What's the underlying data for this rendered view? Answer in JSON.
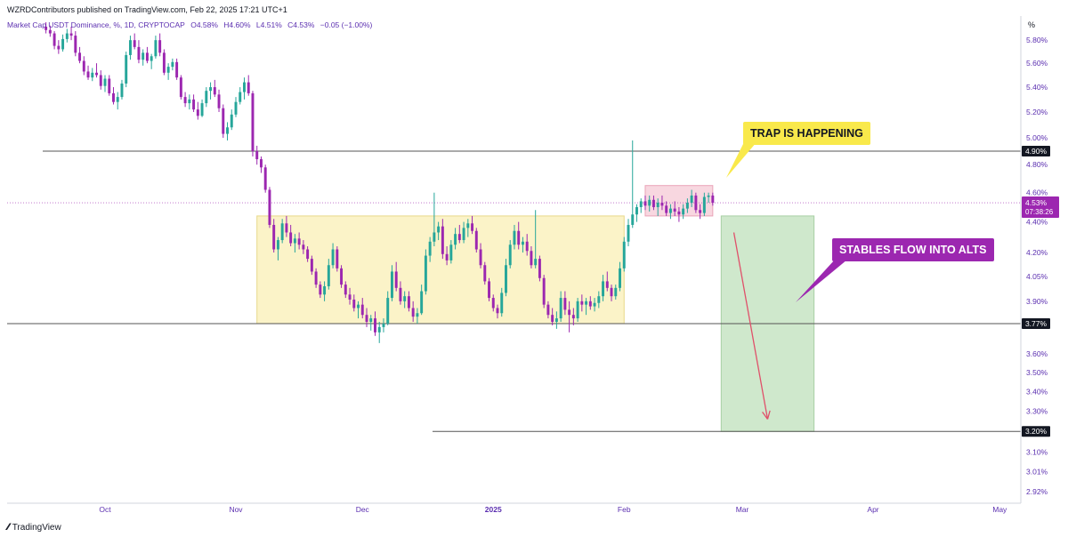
{
  "header": {
    "published": "WZRDContributors published on TradingView.com, Feb 22, 2025 17:21 UTC+1",
    "symbol": "Market Cap USDT Dominance, %, 1D, CRYPTOCAP",
    "open": "O4.58%",
    "high": "H4.60%",
    "low": "L4.51%",
    "close": "C4.53%",
    "change": "−0.05 (−1.00%)"
  },
  "branding": {
    "name": "TradingView",
    "icon": "tradingview-logo-icon"
  },
  "colors": {
    "up": "#26a69a",
    "down": "#9c27b0",
    "support_zone": "#fbf3c8",
    "trap_zone": "#f8d7e0",
    "target_zone": "#cfe8cc",
    "arrow": "#e0506a",
    "callout_yellow": "#f9e94b",
    "callout_purple": "#9c27b0"
  },
  "annotations": {
    "trap_label": "TRAP IS HAPPENING",
    "stables_label": "STABLES FLOW INTO ALTS"
  },
  "chart_data": {
    "type": "candlestick",
    "title": "Market Cap USDT Dominance, %, 1D, CRYPTOCAP",
    "y_unit": "%",
    "y_scale": "log",
    "ylim": [
      2.88,
      6.05
    ],
    "x_ticks": [
      "Oct",
      "Nov",
      "Dec",
      "2025",
      "Feb",
      "Mar",
      "Apr",
      "May"
    ],
    "y_ticks": [
      "5.80%",
      "5.60%",
      "5.40%",
      "5.20%",
      "5.00%",
      "4.80%",
      "4.60%",
      "4.40%",
      "4.20%",
      "4.05%",
      "3.90%",
      "3.60%",
      "3.50%",
      "3.40%",
      "3.30%",
      "3.10%",
      "3.01%",
      "2.92%"
    ],
    "price_labels": [
      {
        "value": 4.9,
        "label": "4.90%"
      },
      {
        "value": 3.77,
        "label": "3.77%"
      },
      {
        "value": 3.2,
        "label": "3.20%"
      }
    ],
    "current": {
      "value": 4.53,
      "label": "4.53%",
      "countdown": "07:38:26"
    },
    "horizontal_lines": [
      4.9,
      3.77,
      3.2
    ],
    "zones": [
      {
        "name": "range-zone",
        "start": "2024-11-06",
        "end": "2025-02-01",
        "low": 3.77,
        "high": 4.44
      },
      {
        "name": "trap-zone",
        "start": "2025-02-06",
        "end": "2025-02-22",
        "low": 4.44,
        "high": 4.65
      },
      {
        "name": "target-zone",
        "start": "2025-02-24",
        "end": "2025-03-18",
        "low": 3.2,
        "high": 4.44
      }
    ],
    "projection": {
      "from": {
        "date": "2025-02-27",
        "value": 4.33
      },
      "to": {
        "date": "2025-03-07",
        "value": 3.26
      }
    },
    "candles": [
      [
        "2024-09-17",
        5.92,
        5.96,
        5.86,
        5.89
      ],
      [
        "2024-09-18",
        5.89,
        5.93,
        5.83,
        5.86
      ],
      [
        "2024-09-19",
        5.86,
        5.88,
        5.72,
        5.75
      ],
      [
        "2024-09-20",
        5.75,
        5.8,
        5.68,
        5.72
      ],
      [
        "2024-09-21",
        5.72,
        5.85,
        5.7,
        5.81
      ],
      [
        "2024-09-22",
        5.81,
        5.9,
        5.78,
        5.86
      ],
      [
        "2024-09-23",
        5.86,
        5.92,
        5.8,
        5.84
      ],
      [
        "2024-09-24",
        5.84,
        5.88,
        5.66,
        5.69
      ],
      [
        "2024-09-25",
        5.69,
        5.74,
        5.6,
        5.62
      ],
      [
        "2024-09-26",
        5.62,
        5.66,
        5.5,
        5.53
      ],
      [
        "2024-09-27",
        5.53,
        5.58,
        5.46,
        5.48
      ],
      [
        "2024-09-28",
        5.48,
        5.56,
        5.45,
        5.52
      ],
      [
        "2024-09-29",
        5.52,
        5.6,
        5.48,
        5.5
      ],
      [
        "2024-09-30",
        5.5,
        5.54,
        5.38,
        5.41
      ],
      [
        "2024-10-01",
        5.41,
        5.5,
        5.36,
        5.47
      ],
      [
        "2024-10-02",
        5.47,
        5.5,
        5.33,
        5.35
      ],
      [
        "2024-10-03",
        5.35,
        5.4,
        5.26,
        5.28
      ],
      [
        "2024-10-04",
        5.28,
        5.36,
        5.22,
        5.32
      ],
      [
        "2024-10-05",
        5.32,
        5.46,
        5.3,
        5.43
      ],
      [
        "2024-10-06",
        5.43,
        5.7,
        5.4,
        5.67
      ],
      [
        "2024-10-07",
        5.67,
        5.84,
        5.63,
        5.8
      ],
      [
        "2024-10-08",
        5.8,
        5.86,
        5.72,
        5.74
      ],
      [
        "2024-10-09",
        5.74,
        5.8,
        5.6,
        5.63
      ],
      [
        "2024-10-10",
        5.63,
        5.72,
        5.58,
        5.69
      ],
      [
        "2024-10-11",
        5.69,
        5.74,
        5.6,
        5.62
      ],
      [
        "2024-10-12",
        5.62,
        5.68,
        5.55,
        5.66
      ],
      [
        "2024-10-13",
        5.66,
        5.84,
        5.64,
        5.8
      ],
      [
        "2024-10-14",
        5.8,
        5.86,
        5.66,
        5.69
      ],
      [
        "2024-10-15",
        5.69,
        5.72,
        5.5,
        5.52
      ],
      [
        "2024-10-16",
        5.52,
        5.6,
        5.46,
        5.57
      ],
      [
        "2024-10-17",
        5.57,
        5.64,
        5.54,
        5.61
      ],
      [
        "2024-10-18",
        5.61,
        5.64,
        5.46,
        5.48
      ],
      [
        "2024-10-19",
        5.48,
        5.5,
        5.3,
        5.32
      ],
      [
        "2024-10-20",
        5.32,
        5.36,
        5.24,
        5.27
      ],
      [
        "2024-10-21",
        5.27,
        5.34,
        5.22,
        5.3
      ],
      [
        "2024-10-22",
        5.3,
        5.34,
        5.2,
        5.22
      ],
      [
        "2024-10-23",
        5.22,
        5.28,
        5.14,
        5.17
      ],
      [
        "2024-10-24",
        5.17,
        5.3,
        5.16,
        5.27
      ],
      [
        "2024-10-25",
        5.27,
        5.4,
        5.24,
        5.37
      ],
      [
        "2024-10-26",
        5.37,
        5.44,
        5.3,
        5.4
      ],
      [
        "2024-10-27",
        5.4,
        5.46,
        5.32,
        5.34
      ],
      [
        "2024-10-28",
        5.34,
        5.38,
        5.2,
        5.23
      ],
      [
        "2024-10-29",
        5.23,
        5.26,
        5.0,
        5.03
      ],
      [
        "2024-10-30",
        5.03,
        5.12,
        4.98,
        5.08
      ],
      [
        "2024-10-31",
        5.08,
        5.22,
        5.06,
        5.18
      ],
      [
        "2024-11-01",
        5.18,
        5.32,
        5.16,
        5.28
      ],
      [
        "2024-11-02",
        5.28,
        5.4,
        5.26,
        5.36
      ],
      [
        "2024-11-03",
        5.36,
        5.48,
        5.3,
        5.44
      ],
      [
        "2024-11-04",
        5.44,
        5.5,
        5.33,
        5.35
      ],
      [
        "2024-11-05",
        5.35,
        5.37,
        4.86,
        4.9
      ],
      [
        "2024-11-06",
        4.9,
        4.94,
        4.8,
        4.84
      ],
      [
        "2024-11-07",
        4.84,
        4.86,
        4.74,
        4.78
      ],
      [
        "2024-11-08",
        4.78,
        4.8,
        4.6,
        4.62
      ],
      [
        "2024-11-09",
        4.62,
        4.64,
        4.36,
        4.38
      ],
      [
        "2024-11-10",
        4.38,
        4.42,
        4.2,
        4.22
      ],
      [
        "2024-11-11",
        4.22,
        4.3,
        4.15,
        4.28
      ],
      [
        "2024-11-12",
        4.28,
        4.42,
        4.26,
        4.39
      ],
      [
        "2024-11-13",
        4.39,
        4.44,
        4.3,
        4.33
      ],
      [
        "2024-11-14",
        4.33,
        4.38,
        4.24,
        4.26
      ],
      [
        "2024-11-15",
        4.26,
        4.32,
        4.2,
        4.29
      ],
      [
        "2024-11-16",
        4.29,
        4.33,
        4.22,
        4.25
      ],
      [
        "2024-11-17",
        4.25,
        4.28,
        4.19,
        4.22
      ],
      [
        "2024-11-18",
        4.22,
        4.24,
        4.14,
        4.16
      ],
      [
        "2024-11-19",
        4.16,
        4.18,
        4.06,
        4.08
      ],
      [
        "2024-11-20",
        4.08,
        4.1,
        3.98,
        4.0
      ],
      [
        "2024-11-21",
        4.0,
        4.02,
        3.92,
        3.94
      ],
      [
        "2024-11-22",
        3.94,
        4.02,
        3.9,
        3.99
      ],
      [
        "2024-11-23",
        3.99,
        4.16,
        3.97,
        4.12
      ],
      [
        "2024-11-24",
        4.12,
        4.26,
        4.1,
        4.22
      ],
      [
        "2024-11-25",
        4.22,
        4.24,
        4.08,
        4.1
      ],
      [
        "2024-11-26",
        4.1,
        4.12,
        3.98,
        4.0
      ],
      [
        "2024-11-27",
        4.0,
        4.02,
        3.92,
        3.94
      ],
      [
        "2024-11-28",
        3.94,
        3.98,
        3.88,
        3.91
      ],
      [
        "2024-11-29",
        3.91,
        3.94,
        3.84,
        3.86
      ],
      [
        "2024-11-30",
        3.86,
        3.9,
        3.8,
        3.88
      ],
      [
        "2024-12-01",
        3.88,
        3.92,
        3.8,
        3.82
      ],
      [
        "2024-12-02",
        3.82,
        3.86,
        3.75,
        3.78
      ],
      [
        "2024-12-03",
        3.78,
        3.82,
        3.73,
        3.8
      ],
      [
        "2024-12-04",
        3.8,
        3.84,
        3.7,
        3.72
      ],
      [
        "2024-12-05",
        3.72,
        3.78,
        3.66,
        3.75
      ],
      [
        "2024-12-06",
        3.75,
        3.8,
        3.72,
        3.77
      ],
      [
        "2024-12-07",
        3.77,
        3.96,
        3.76,
        3.92
      ],
      [
        "2024-12-08",
        3.92,
        4.12,
        3.9,
        4.08
      ],
      [
        "2024-12-09",
        4.08,
        4.14,
        3.96,
        3.98
      ],
      [
        "2024-12-10",
        3.98,
        4.02,
        3.88,
        3.9
      ],
      [
        "2024-12-11",
        3.9,
        3.96,
        3.86,
        3.93
      ],
      [
        "2024-12-12",
        3.93,
        3.96,
        3.84,
        3.86
      ],
      [
        "2024-12-13",
        3.86,
        3.9,
        3.78,
        3.81
      ],
      [
        "2024-12-14",
        3.81,
        3.86,
        3.77,
        3.83
      ],
      [
        "2024-12-15",
        3.83,
        4.0,
        3.82,
        3.96
      ],
      [
        "2024-12-16",
        3.96,
        4.22,
        3.94,
        4.18
      ],
      [
        "2024-12-17",
        4.18,
        4.3,
        4.14,
        4.27
      ],
      [
        "2024-12-18",
        4.27,
        4.6,
        4.24,
        4.33
      ],
      [
        "2024-12-19",
        4.33,
        4.4,
        4.28,
        4.37
      ],
      [
        "2024-12-20",
        4.37,
        4.42,
        4.16,
        4.19
      ],
      [
        "2024-12-21",
        4.19,
        4.24,
        4.12,
        4.15
      ],
      [
        "2024-12-22",
        4.15,
        4.28,
        4.13,
        4.25
      ],
      [
        "2024-12-23",
        4.25,
        4.36,
        4.22,
        4.32
      ],
      [
        "2024-12-24",
        4.32,
        4.38,
        4.26,
        4.28
      ],
      [
        "2024-12-25",
        4.28,
        4.4,
        4.26,
        4.36
      ],
      [
        "2024-12-26",
        4.36,
        4.42,
        4.3,
        4.39
      ],
      [
        "2024-12-27",
        4.39,
        4.44,
        4.32,
        4.34
      ],
      [
        "2024-12-28",
        4.34,
        4.36,
        4.2,
        4.22
      ],
      [
        "2024-12-29",
        4.22,
        4.26,
        4.1,
        4.12
      ],
      [
        "2024-12-30",
        4.12,
        4.14,
        4.0,
        4.02
      ],
      [
        "2024-12-31",
        4.02,
        4.04,
        3.9,
        3.92
      ],
      [
        "2025-01-01",
        3.92,
        3.94,
        3.84,
        3.86
      ],
      [
        "2025-01-02",
        3.86,
        3.88,
        3.8,
        3.83
      ],
      [
        "2025-01-03",
        3.83,
        3.98,
        3.81,
        3.95
      ],
      [
        "2025-01-04",
        3.95,
        4.16,
        3.93,
        4.12
      ],
      [
        "2025-01-05",
        4.12,
        4.28,
        4.1,
        4.25
      ],
      [
        "2025-01-06",
        4.25,
        4.38,
        4.22,
        4.34
      ],
      [
        "2025-01-07",
        4.34,
        4.4,
        4.22,
        4.25
      ],
      [
        "2025-01-08",
        4.25,
        4.3,
        4.2,
        4.27
      ],
      [
        "2025-01-09",
        4.27,
        4.32,
        4.18,
        4.21
      ],
      [
        "2025-01-10",
        4.21,
        4.24,
        4.1,
        4.12
      ],
      [
        "2025-01-11",
        4.12,
        4.48,
        4.1,
        4.16
      ],
      [
        "2025-01-12",
        4.16,
        4.18,
        4.02,
        4.04
      ],
      [
        "2025-01-13",
        4.04,
        4.06,
        3.86,
        3.88
      ],
      [
        "2025-01-14",
        3.88,
        3.9,
        3.8,
        3.82
      ],
      [
        "2025-01-15",
        3.82,
        3.86,
        3.76,
        3.78
      ],
      [
        "2025-01-16",
        3.78,
        3.84,
        3.74,
        3.8
      ],
      [
        "2025-01-17",
        3.8,
        3.96,
        3.78,
        3.92
      ],
      [
        "2025-01-18",
        3.92,
        3.96,
        3.82,
        3.85
      ],
      [
        "2025-01-19",
        3.85,
        3.9,
        3.72,
        3.82
      ],
      [
        "2025-01-20",
        3.82,
        3.86,
        3.76,
        3.8
      ],
      [
        "2025-01-21",
        3.8,
        3.92,
        3.78,
        3.9
      ],
      [
        "2025-01-22",
        3.9,
        3.94,
        3.84,
        3.88
      ],
      [
        "2025-01-23",
        3.88,
        3.92,
        3.82,
        3.9
      ],
      [
        "2025-01-24",
        3.9,
        3.93,
        3.85,
        3.87
      ],
      [
        "2025-01-25",
        3.87,
        3.92,
        3.84,
        3.89
      ],
      [
        "2025-01-26",
        3.89,
        3.96,
        3.86,
        3.93
      ],
      [
        "2025-01-27",
        3.93,
        4.06,
        3.9,
        4.02
      ],
      [
        "2025-01-28",
        4.02,
        4.08,
        3.96,
        3.98
      ],
      [
        "2025-01-29",
        3.98,
        4.0,
        3.9,
        3.93
      ],
      [
        "2025-01-30",
        3.93,
        4.0,
        3.91,
        3.98
      ],
      [
        "2025-01-31",
        3.98,
        4.14,
        3.96,
        4.1
      ],
      [
        "2025-02-01",
        4.1,
        4.3,
        4.08,
        4.27
      ],
      [
        "2025-02-02",
        4.27,
        4.42,
        4.24,
        4.38
      ],
      [
        "2025-02-03",
        4.38,
        4.98,
        4.36,
        4.45
      ],
      [
        "2025-02-04",
        4.45,
        4.52,
        4.4,
        4.5
      ],
      [
        "2025-02-05",
        4.5,
        4.56,
        4.46,
        4.54
      ],
      [
        "2025-02-06",
        4.54,
        4.58,
        4.48,
        4.51
      ],
      [
        "2025-02-07",
        4.51,
        4.58,
        4.47,
        4.55
      ],
      [
        "2025-02-08",
        4.55,
        4.58,
        4.48,
        4.5
      ],
      [
        "2025-02-09",
        4.5,
        4.56,
        4.44,
        4.53
      ],
      [
        "2025-02-10",
        4.53,
        4.58,
        4.48,
        4.51
      ],
      [
        "2025-02-11",
        4.51,
        4.54,
        4.44,
        4.46
      ],
      [
        "2025-02-12",
        4.46,
        4.52,
        4.42,
        4.49
      ],
      [
        "2025-02-13",
        4.49,
        4.54,
        4.44,
        4.47
      ],
      [
        "2025-02-14",
        4.47,
        4.5,
        4.4,
        4.45
      ],
      [
        "2025-02-15",
        4.45,
        4.52,
        4.42,
        4.49
      ],
      [
        "2025-02-16",
        4.49,
        4.56,
        4.46,
        4.53
      ],
      [
        "2025-02-17",
        4.53,
        4.62,
        4.5,
        4.58
      ],
      [
        "2025-02-18",
        4.58,
        4.6,
        4.46,
        4.48
      ],
      [
        "2025-02-19",
        4.48,
        4.52,
        4.42,
        4.46
      ],
      [
        "2025-02-20",
        4.46,
        4.6,
        4.44,
        4.57
      ],
      [
        "2025-02-21",
        4.57,
        4.6,
        4.53,
        4.58
      ],
      [
        "2025-02-22",
        4.58,
        4.6,
        4.51,
        4.53
      ]
    ]
  }
}
